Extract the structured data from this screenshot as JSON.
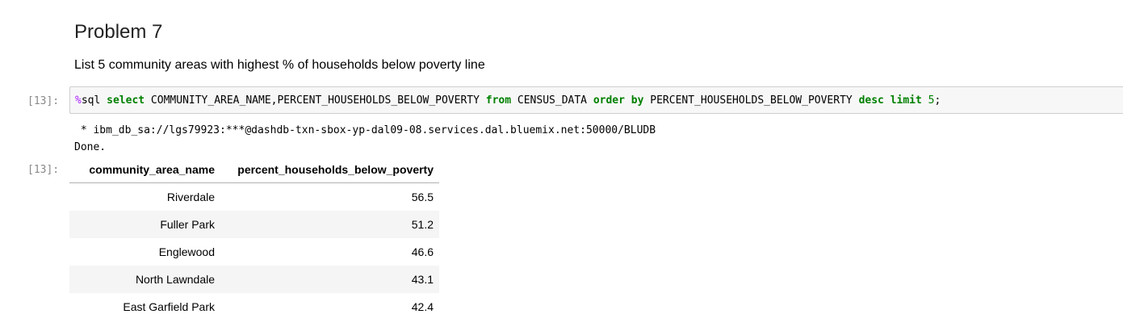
{
  "markdown": {
    "title": "Problem 7",
    "description": "List 5 community areas with highest % of households below poverty line"
  },
  "cell": {
    "input_prompt": "[13]:",
    "output_prompt": "[13]:",
    "code_tokens": [
      {
        "t": "%",
        "c": "magic"
      },
      {
        "t": "sql ",
        "c": "name"
      },
      {
        "t": "select",
        "c": "kw"
      },
      {
        "t": " COMMUNITY_AREA_NAME",
        "c": "name"
      },
      {
        "t": ",",
        "c": "punct"
      },
      {
        "t": "PERCENT_HOUSEHOLDS_BELOW_POVERTY ",
        "c": "name"
      },
      {
        "t": "from",
        "c": "kw"
      },
      {
        "t": " CENSUS_DATA ",
        "c": "name"
      },
      {
        "t": "order",
        "c": "kw"
      },
      {
        "t": " ",
        "c": "name"
      },
      {
        "t": "by",
        "c": "kw"
      },
      {
        "t": " PERCENT_HOUSEHOLDS_BELOW_POVERTY ",
        "c": "name"
      },
      {
        "t": "desc",
        "c": "kw"
      },
      {
        "t": " ",
        "c": "name"
      },
      {
        "t": "limit",
        "c": "kw"
      },
      {
        "t": " ",
        "c": "name"
      },
      {
        "t": "5",
        "c": "num"
      },
      {
        "t": ";",
        "c": "punct"
      }
    ],
    "stdout_lines": [
      " * ibm_db_sa://lgs79923:***@dashdb-txn-sbox-yp-dal09-08.services.dal.bluemix.net:50000/BLUDB",
      "Done."
    ]
  },
  "table": {
    "headers": [
      "community_area_name",
      "percent_households_below_poverty"
    ],
    "rows": [
      [
        "Riverdale",
        "56.5"
      ],
      [
        "Fuller Park",
        "51.2"
      ],
      [
        "Englewood",
        "46.6"
      ],
      [
        "North Lawndale",
        "43.1"
      ],
      [
        "East Garfield Park",
        "42.4"
      ]
    ]
  },
  "colors": {
    "magic": "#aa22ff",
    "keyword": "#008000",
    "prompt": "#8a8a8a",
    "input_bg": "#f7f7f7",
    "row_stripe": "#f5f5f5"
  }
}
